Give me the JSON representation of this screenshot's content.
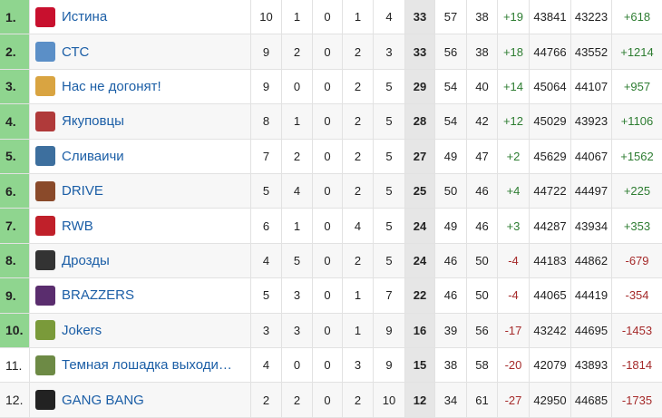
{
  "table": {
    "rows": [
      [
        "1.",
        "Истина",
        "10",
        "1",
        "0",
        "1",
        "4",
        "33",
        "57",
        "38",
        "+19",
        "43841",
        "43223",
        "+618"
      ],
      [
        "2.",
        "СТС",
        "9",
        "2",
        "0",
        "2",
        "3",
        "33",
        "56",
        "38",
        "+18",
        "44766",
        "43552",
        "+1214"
      ],
      [
        "3.",
        "Нас не догонят!",
        "9",
        "0",
        "0",
        "2",
        "5",
        "29",
        "54",
        "40",
        "+14",
        "45064",
        "44107",
        "+957"
      ],
      [
        "4.",
        "Якуповцы",
        "8",
        "1",
        "0",
        "2",
        "5",
        "28",
        "54",
        "42",
        "+12",
        "45029",
        "43923",
        "+1106"
      ],
      [
        "5.",
        "Сливаичи",
        "7",
        "2",
        "0",
        "2",
        "5",
        "27",
        "49",
        "47",
        "+2",
        "45629",
        "44067",
        "+1562"
      ],
      [
        "6.",
        "DRIVE",
        "5",
        "4",
        "0",
        "2",
        "5",
        "25",
        "50",
        "46",
        "+4",
        "44722",
        "44497",
        "+225"
      ],
      [
        "7.",
        "RWB",
        "6",
        "1",
        "0",
        "4",
        "5",
        "24",
        "49",
        "46",
        "+3",
        "44287",
        "43934",
        "+353"
      ],
      [
        "8.",
        "Дрозды",
        "4",
        "5",
        "0",
        "2",
        "5",
        "24",
        "46",
        "50",
        "-4",
        "44183",
        "44862",
        "-679"
      ],
      [
        "9.",
        "BRAZZERS",
        "5",
        "3",
        "0",
        "1",
        "7",
        "22",
        "46",
        "50",
        "-4",
        "44065",
        "44419",
        "-354"
      ],
      [
        "10.",
        "Jokers",
        "3",
        "3",
        "0",
        "1",
        "9",
        "16",
        "39",
        "56",
        "-17",
        "43242",
        "44695",
        "-1453"
      ],
      [
        "11.",
        "Темная лошадка выходи…",
        "4",
        "0",
        "0",
        "3",
        "9",
        "15",
        "38",
        "58",
        "-20",
        "42079",
        "43893",
        "-1814"
      ],
      [
        "12.",
        "GANG BANG",
        "2",
        "2",
        "0",
        "2",
        "10",
        "12",
        "34",
        "61",
        "-27",
        "42950",
        "44685",
        "-1735"
      ]
    ]
  }
}
